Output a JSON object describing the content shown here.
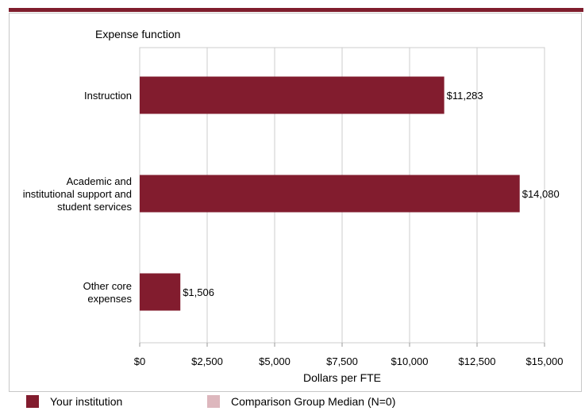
{
  "chart_data": {
    "type": "bar",
    "orientation": "horizontal",
    "title": "Expense function",
    "categories": [
      [
        "Instruction"
      ],
      [
        "Academic and",
        "institutional support and",
        "student services"
      ],
      [
        "Other core",
        "expenses"
      ]
    ],
    "series": [
      {
        "name": "Your institution",
        "values": [
          11283,
          14080,
          1506
        ],
        "value_labels": [
          "$11,283",
          "$14,080",
          "$1,506"
        ]
      }
    ],
    "xlabel": "Dollars per FTE",
    "xlim": [
      0,
      15000
    ],
    "xticks": [
      0,
      2500,
      5000,
      7500,
      10000,
      12500,
      15000
    ],
    "xtick_labels": [
      "$0",
      "$2,500",
      "$5,000",
      "$7,500",
      "$10,000",
      "$12,500",
      "$15,000"
    ],
    "grid": true,
    "legend_position": "bottom"
  },
  "legend": [
    {
      "label": "Your institution",
      "color": "#821c2e"
    },
    {
      "label": "Comparison Group Median (N=0)",
      "color": "#ddb7bd"
    }
  ],
  "colors": {
    "bar": "#821c2e",
    "accent_rule": "#7f1d2d",
    "grid": "#cccccc"
  }
}
